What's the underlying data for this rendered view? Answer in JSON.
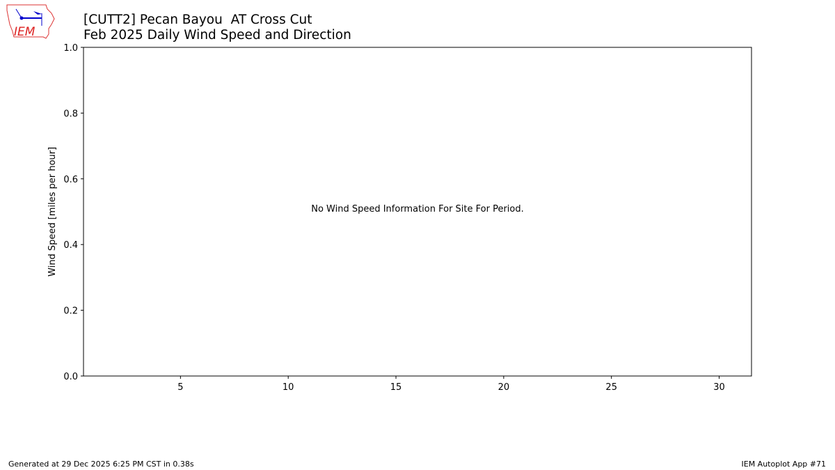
{
  "header": {
    "title_line1": "[CUTT2] Pecan Bayou  AT Cross Cut",
    "title_line2": "Feb 2025 Daily Wind Speed and Direction",
    "logo_text": "IEM"
  },
  "footer": {
    "generated": "Generated at 29 Dec 2025 6:25 PM CST in 0.38s",
    "app": "IEM Autoplot App #71"
  },
  "chart_data": {
    "type": "line",
    "title": "[CUTT2] Pecan Bayou  AT Cross Cut\nFeb 2025 Daily Wind Speed and Direction",
    "xlabel": "",
    "ylabel": "Wind Speed [miles per hour]",
    "xlim": [
      0.5,
      31.5
    ],
    "ylim": [
      0,
      1
    ],
    "xticks": [
      5,
      10,
      15,
      20,
      25,
      30
    ],
    "yticks": [
      0.0,
      0.2,
      0.4,
      0.6,
      0.8,
      1.0
    ],
    "ytick_labels": [
      "0.0",
      "0.2",
      "0.4",
      "0.6",
      "0.8",
      "1.0"
    ],
    "grid": false,
    "series": [],
    "annotation": "No Wind Speed Information For Site For Period."
  }
}
